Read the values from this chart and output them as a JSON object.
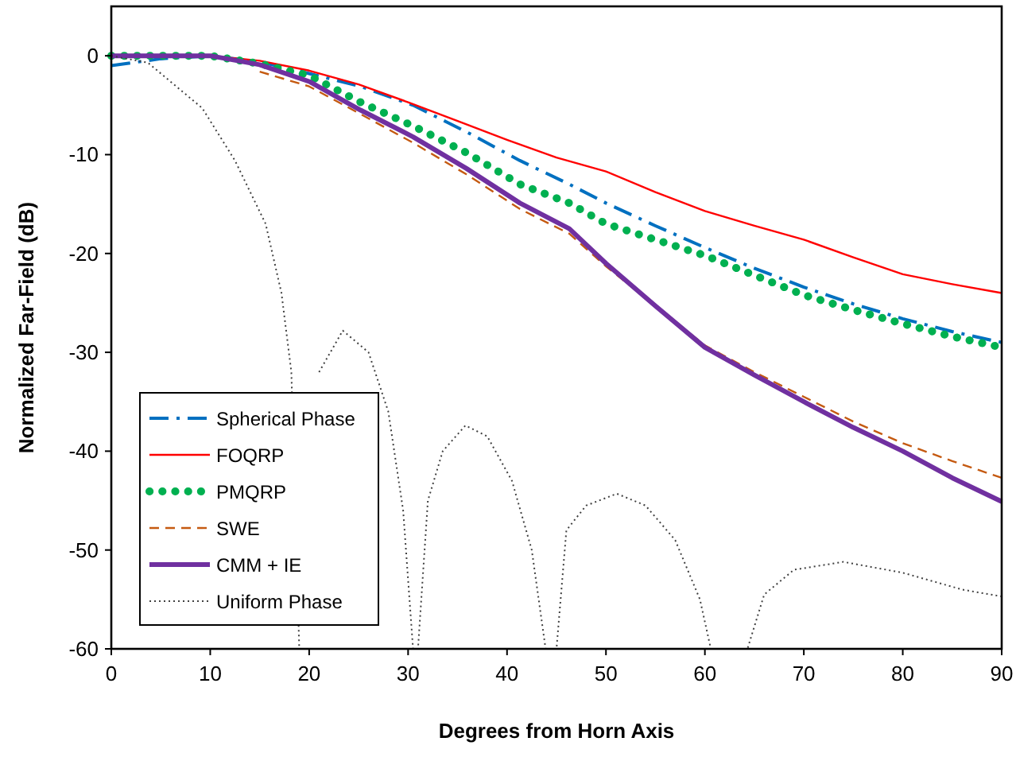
{
  "chart_data": {
    "type": "line",
    "xlabel": "Degrees from Horn Axis",
    "ylabel": "Normalized Far-Field (dB)",
    "xlim": [
      0,
      90
    ],
    "ylim": [
      -60,
      5
    ],
    "xticks": [
      0,
      10,
      20,
      30,
      40,
      50,
      60,
      70,
      80,
      90
    ],
    "yticks": [
      -60,
      -50,
      -40,
      -30,
      -20,
      -10,
      0
    ],
    "grid": false,
    "legend": "bottom left",
    "series": [
      {
        "name": "Spherical Phase",
        "color": "#0070c0",
        "line_style": "dashdot",
        "x": [
          0,
          5,
          10,
          15,
          20,
          25.2,
          30.5,
          35.9,
          41.3,
          46.3,
          50,
          55,
          60,
          65,
          70,
          75,
          80,
          85,
          90
        ],
        "values": [
          -1,
          -0.3,
          0,
          -0.6,
          -1.8,
          -3.1,
          -5,
          -7.7,
          -10.6,
          -13,
          -14.9,
          -17.2,
          -19.4,
          -21.5,
          -23.4,
          -25.1,
          -26.6,
          -27.9,
          -29
        ]
      },
      {
        "name": "FOQRP",
        "color": "#ff0000",
        "line_style": "solid",
        "x": [
          10,
          15,
          20,
          25,
          30,
          35,
          40,
          45,
          50,
          55,
          60,
          65,
          70,
          75,
          80,
          85,
          90
        ],
        "values": [
          0,
          -0.5,
          -1.5,
          -2.9,
          -4.7,
          -6.6,
          -8.5,
          -10.3,
          -11.7,
          -13.8,
          -15.7,
          -17.2,
          -18.6,
          -20.4,
          -22.1,
          -23.1,
          -24
        ]
      },
      {
        "name": "PMQRP",
        "color": "#00b050",
        "line_style": "dotted",
        "x": [
          0,
          5,
          10,
          15,
          20,
          25.2,
          30.5,
          35.9,
          41.3,
          46.3,
          50,
          55,
          60,
          65,
          70,
          75,
          80,
          85,
          90
        ],
        "values": [
          0,
          0,
          0,
          -0.8,
          -2,
          -4.7,
          -7.1,
          -9.8,
          -13,
          -14.9,
          -17,
          -18.6,
          -20.2,
          -22.2,
          -24.2,
          -25.7,
          -27.1,
          -28.4,
          -29.5
        ]
      },
      {
        "name": "SWE",
        "color": "#c55a11",
        "line_style": "dashed",
        "x": [
          15,
          20,
          25.2,
          30.5,
          35.9,
          41.3,
          46.3,
          50,
          55,
          60,
          65,
          70,
          75,
          80,
          85,
          90
        ],
        "values": [
          -1.6,
          -3.1,
          -5.9,
          -8.8,
          -12,
          -15.5,
          -18,
          -21.3,
          -25.3,
          -29.3,
          -32,
          -34.5,
          -37,
          -39.2,
          -41,
          -42.7
        ]
      },
      {
        "name": "CMM + IE",
        "color": "#7030a0",
        "line_style": "solid",
        "x": [
          0,
          5,
          10,
          15,
          20,
          25.2,
          30.5,
          35.9,
          41.3,
          46.3,
          50,
          55,
          60,
          65,
          70,
          75,
          80,
          85,
          90
        ],
        "values": [
          0,
          0,
          0,
          -0.9,
          -2.6,
          -5.5,
          -8.2,
          -11.4,
          -14.9,
          -17.5,
          -21,
          -25.3,
          -29.5,
          -32.3,
          -35,
          -37.6,
          -40,
          -42.7,
          -45.1
        ]
      },
      {
        "name": "Uniform Phase",
        "color": "#404040",
        "line_style": "dotted",
        "x": [
          0,
          3.7,
          9.2,
          12.5,
          15.6,
          17.2,
          18.2,
          19,
          19.3,
          20,
          21,
          23.4,
          26,
          28,
          29.5,
          30.5,
          31,
          32,
          33.5,
          35.8,
          38,
          40.5,
          42.5,
          43.9,
          45,
          46,
          48,
          51.1,
          54,
          57,
          59.5,
          60.6,
          64.3,
          66,
          69,
          74,
          80,
          86,
          90
        ],
        "values": [
          0,
          -0.7,
          -5.3,
          -10.6,
          -17,
          -24,
          -32,
          -60,
          -60,
          null,
          -32,
          -27.8,
          -30,
          -36,
          -46,
          -60,
          -60,
          -45,
          -40,
          -37.4,
          -38.5,
          -43,
          -50,
          -60,
          -60,
          -48,
          -45.5,
          -44.3,
          -45.5,
          -49,
          -55,
          -60,
          -60,
          -54.5,
          -52,
          -51.2,
          -52.3,
          -54,
          -54.7
        ]
      }
    ]
  }
}
